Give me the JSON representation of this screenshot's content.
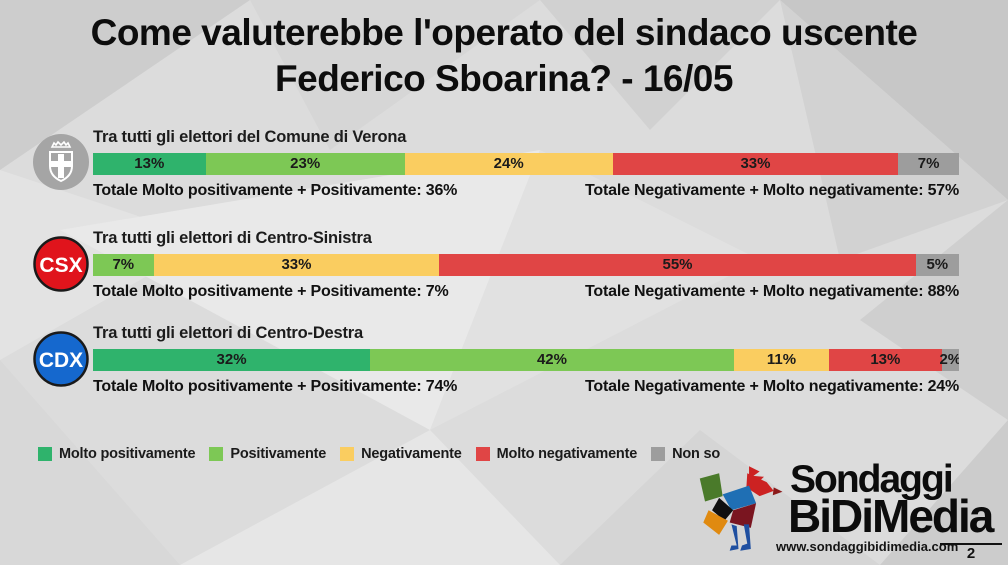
{
  "title": {
    "line1": "Come valuterebbe l'operato del sindaco uscente",
    "line2": "Federico Sboarina? - 16/05"
  },
  "colors": {
    "molto_positivamente": "#2FB36C",
    "positivamente": "#7DC855",
    "negativamente": "#FACD60",
    "molto_negativamente": "#E04545",
    "non_so": "#9D9D9D",
    "csx_badge": "#E0141C",
    "cdx_badge": "#1568CE",
    "verona_badge": "#A5A5A5"
  },
  "rows": [
    {
      "badge_label": "",
      "heading": "Tra tutti gli elettori del Comune di Verona",
      "segments": [
        {
          "key": "molto_positivamente",
          "value": 13,
          "label": "13%"
        },
        {
          "key": "positivamente",
          "value": 23,
          "label": "23%"
        },
        {
          "key": "negativamente",
          "value": 24,
          "label": "24%"
        },
        {
          "key": "molto_negativamente",
          "value": 33,
          "label": "33%"
        },
        {
          "key": "non_so",
          "value": 7,
          "label": "7%"
        }
      ],
      "total_positive": "Totale Molto positivamente + Positivamente: 36%",
      "total_negative": "Totale Negativamente + Molto negativamente: 57%"
    },
    {
      "badge_label": "CSX",
      "heading": "Tra tutti gli elettori di Centro-Sinistra",
      "segments": [
        {
          "key": "positivamente",
          "value": 7,
          "label": "7%"
        },
        {
          "key": "negativamente",
          "value": 33,
          "label": "33%"
        },
        {
          "key": "molto_negativamente",
          "value": 55,
          "label": "55%"
        },
        {
          "key": "non_so",
          "value": 5,
          "label": "5%"
        }
      ],
      "total_positive": "Totale Molto positivamente + Positivamente: 7%",
      "total_negative": "Totale Negativamente + Molto negativamente: 88%"
    },
    {
      "badge_label": "CDX",
      "heading": "Tra tutti gli elettori di Centro-Destra",
      "segments": [
        {
          "key": "molto_positivamente",
          "value": 32,
          "label": "32%"
        },
        {
          "key": "positivamente",
          "value": 42,
          "label": "42%"
        },
        {
          "key": "negativamente",
          "value": 11,
          "label": "11%"
        },
        {
          "key": "molto_negativamente",
          "value": 13,
          "label": "13%"
        },
        {
          "key": "non_so",
          "value": 2,
          "label": "2%"
        }
      ],
      "total_positive": "Totale Molto positivamente + Positivamente: 74%",
      "total_negative": "Totale Negativamente + Molto negativamente: 24%"
    }
  ],
  "legend": [
    {
      "key": "molto_positivamente",
      "label": "Molto positivamente"
    },
    {
      "key": "positivamente",
      "label": "Positivamente"
    },
    {
      "key": "negativamente",
      "label": "Negativamente"
    },
    {
      "key": "molto_negativamente",
      "label": "Molto negativamente"
    },
    {
      "key": "non_so",
      "label": "Non so"
    }
  ],
  "footer": {
    "brand_line1": "Sondaggi",
    "brand_line2": "BiDiMedia",
    "website": "www.sondaggibidimedia.com",
    "page_number": "2"
  },
  "chart_data": {
    "type": "bar",
    "variant": "horizontal-stacked",
    "title": "Come valuterebbe l'operato del sindaco uscente Federico Sboarina? - 16/05",
    "categories": [
      "Tra tutti gli elettori del Comune di Verona",
      "Tra tutti gli elettori di Centro-Sinistra",
      "Tra tutti gli elettori di Centro-Destra"
    ],
    "series": [
      {
        "name": "Molto positivamente",
        "color": "#2FB36C",
        "values": [
          13,
          0,
          32
        ]
      },
      {
        "name": "Positivamente",
        "color": "#7DC855",
        "values": [
          23,
          7,
          42
        ]
      },
      {
        "name": "Negativamente",
        "color": "#FACD60",
        "values": [
          24,
          33,
          11
        ]
      },
      {
        "name": "Molto negativamente",
        "color": "#E04545",
        "values": [
          33,
          55,
          13
        ]
      },
      {
        "name": "Non so",
        "color": "#9D9D9D",
        "values": [
          7,
          5,
          2
        ]
      }
    ],
    "summary_totals": [
      {
        "molto_positivamente_piu_positivamente": 36,
        "negativamente_piu_molto_negativamente": 57
      },
      {
        "molto_positivamente_piu_positivamente": 7,
        "negativamente_piu_molto_negativamente": 88
      },
      {
        "molto_positivamente_piu_positivamente": 74,
        "negativamente_piu_molto_negativamente": 24
      }
    ],
    "xlim": [
      0,
      100
    ],
    "grid": false,
    "legend_position": "bottom-left"
  }
}
